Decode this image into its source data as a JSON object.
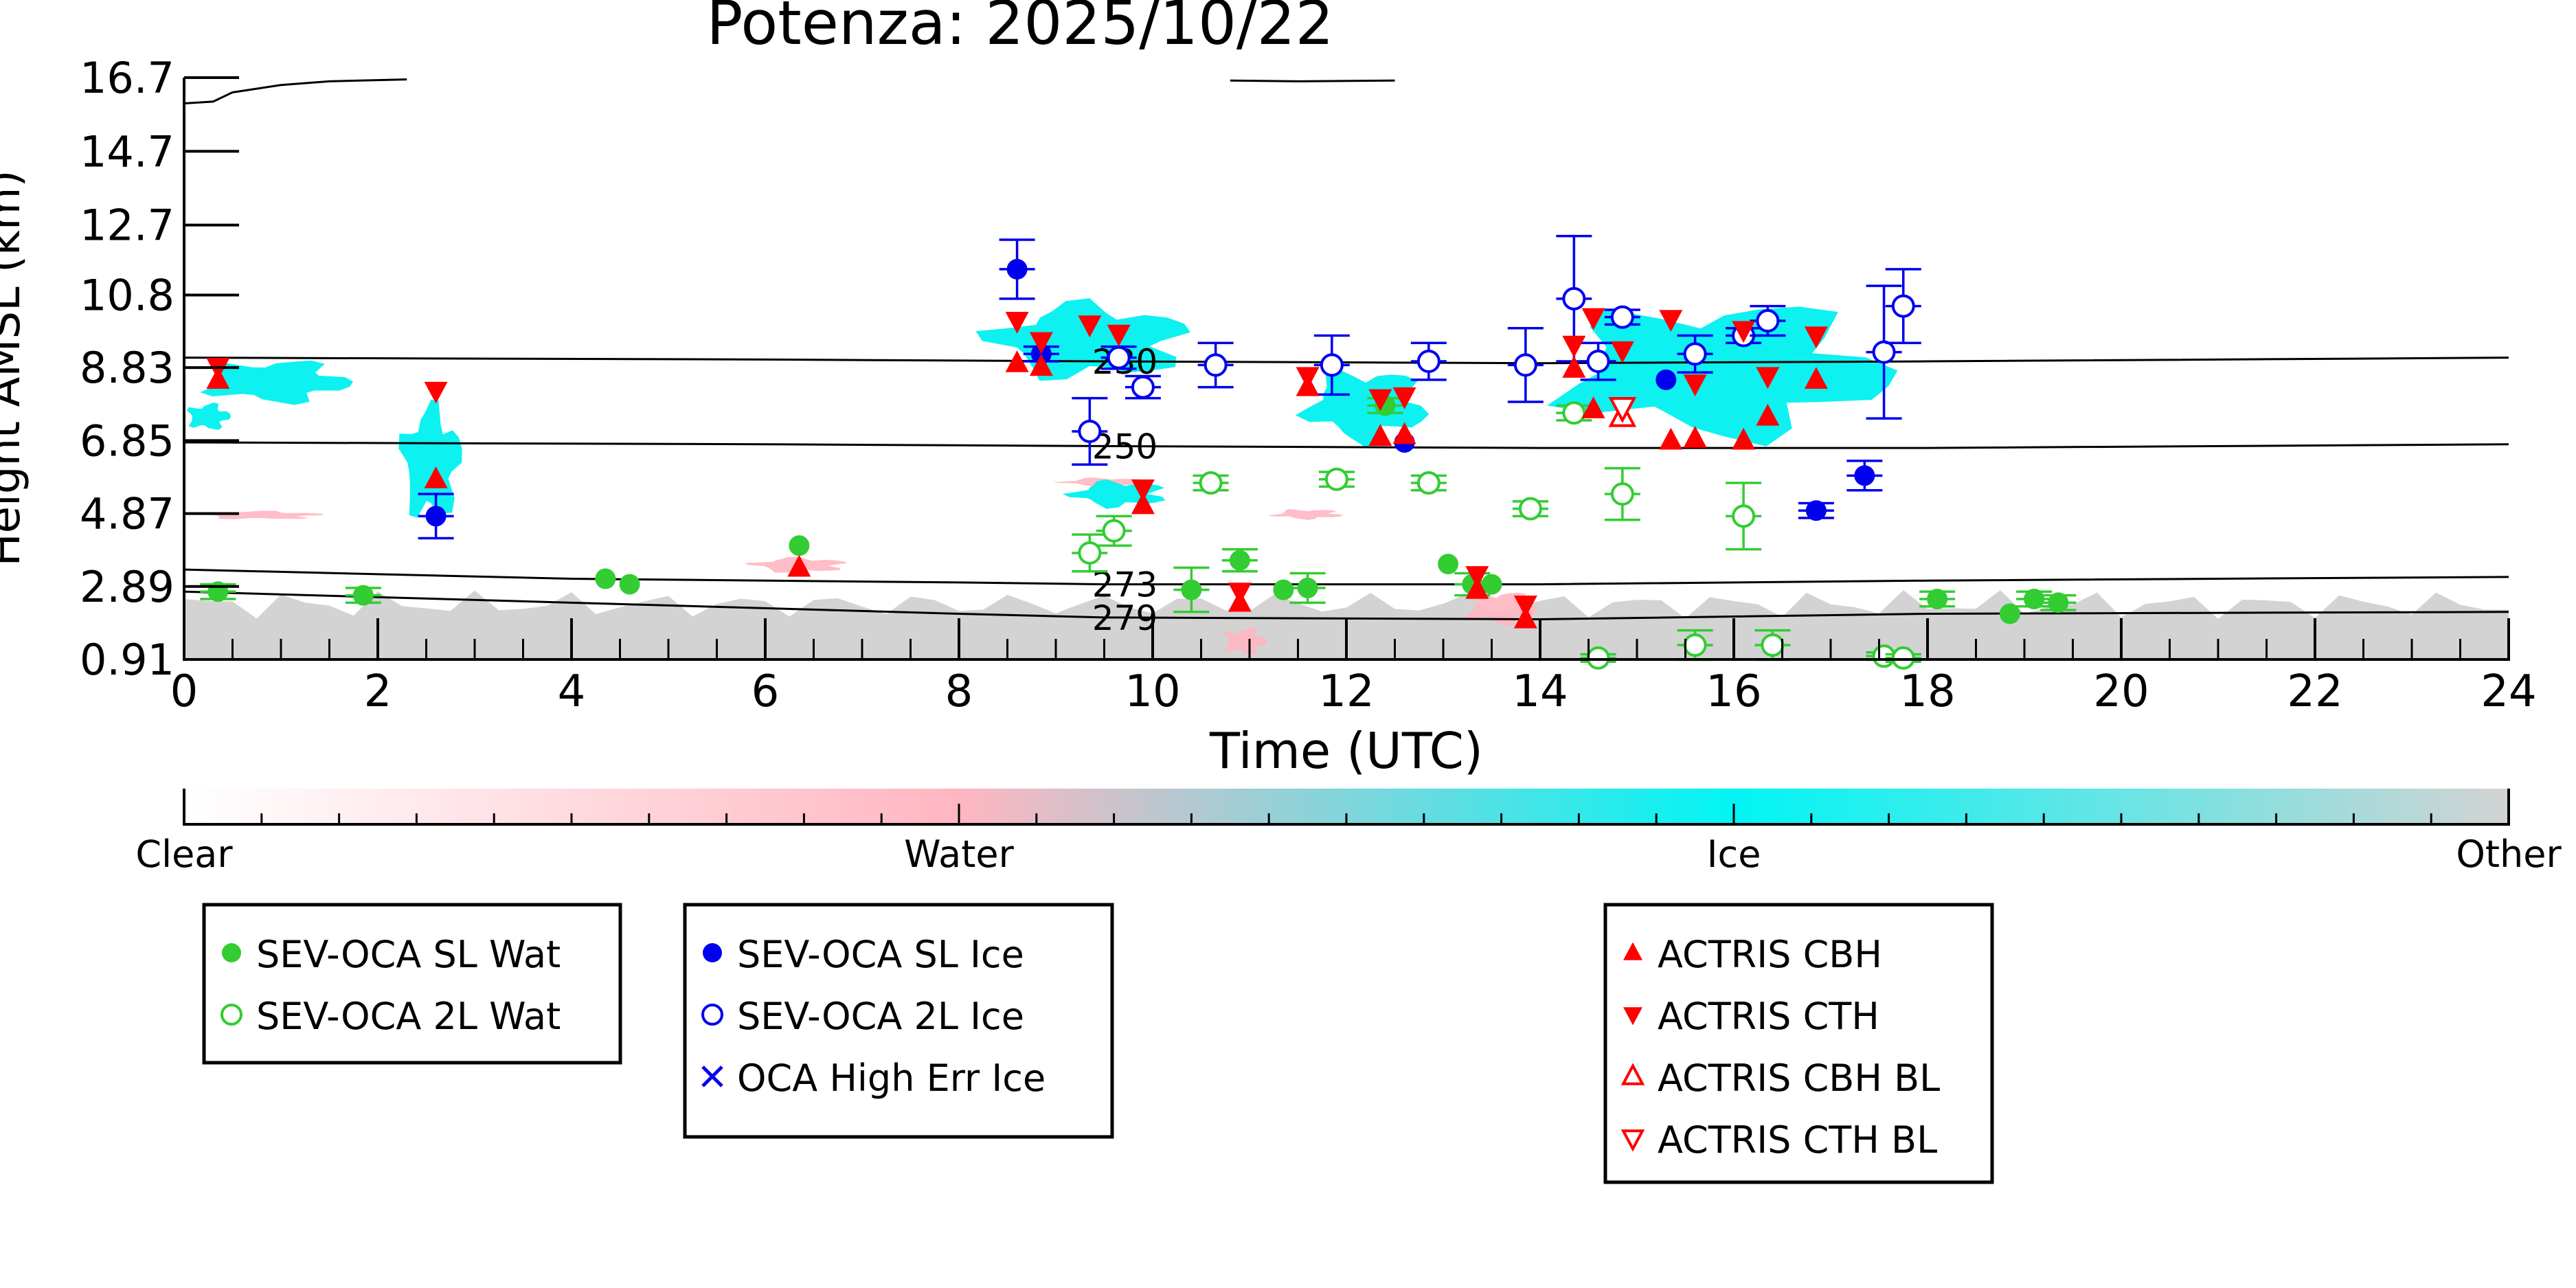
{
  "chart_data": {
    "type": "scatter",
    "title": "Potenza: 2025/10/22",
    "xlabel": "Time (UTC)",
    "ylabel": "Height AMSL (km)",
    "xlim": [
      0,
      24
    ],
    "ylim": [
      0.91,
      16.7
    ],
    "x_ticks": [
      "0",
      "2",
      "4",
      "6",
      "8",
      "10",
      "12",
      "14",
      "16",
      "18",
      "20",
      "22",
      "24"
    ],
    "y_ticks": [
      "0.91",
      "2.89",
      "4.87",
      "6.85",
      "8.83",
      "10.8",
      "12.7",
      "14.7",
      "16.7"
    ],
    "colorbar": {
      "labels": [
        "Clear",
        "Water",
        "Ice",
        "Other"
      ],
      "colors": [
        "#ffffff",
        "#ffb6c1",
        "#00f5f5",
        "#d3d3d3"
      ]
    },
    "isotherms": [
      {
        "label": "230",
        "points": [
          [
            0,
            9.1
          ],
          [
            6,
            9.05
          ],
          [
            9.5,
            9.0
          ],
          [
            14,
            8.95
          ],
          [
            18,
            9.0
          ],
          [
            24,
            9.1
          ]
        ]
      },
      {
        "label": "250",
        "points": [
          [
            0,
            6.8
          ],
          [
            6,
            6.75
          ],
          [
            9.5,
            6.7
          ],
          [
            14,
            6.65
          ],
          [
            18,
            6.65
          ],
          [
            24,
            6.75
          ]
        ]
      },
      {
        "label": "273",
        "points": [
          [
            0,
            3.35
          ],
          [
            4,
            3.1
          ],
          [
            8,
            3.0
          ],
          [
            9.5,
            2.95
          ],
          [
            14,
            2.95
          ],
          [
            18,
            3.05
          ],
          [
            24,
            3.15
          ]
        ]
      },
      {
        "label": "279",
        "points": [
          [
            0,
            2.75
          ],
          [
            4,
            2.45
          ],
          [
            8,
            2.15
          ],
          [
            9.5,
            2.05
          ],
          [
            14,
            2.0
          ],
          [
            18,
            2.15
          ],
          [
            24,
            2.2
          ]
        ]
      }
    ],
    "cloud_ice_regions": [
      {
        "x0": 0.1,
        "x1": 1.8,
        "y0": 7.8,
        "y1": 9.1
      },
      {
        "x0": 0.0,
        "x1": 0.5,
        "y0": 7.1,
        "y1": 7.9
      },
      {
        "x0": 2.2,
        "x1": 2.9,
        "y0": 4.5,
        "y1": 8.0
      },
      {
        "x0": 8.2,
        "x1": 10.5,
        "y0": 8.4,
        "y1": 10.7
      },
      {
        "x0": 9.1,
        "x1": 10.2,
        "y0": 5.0,
        "y1": 5.8
      },
      {
        "x0": 11.5,
        "x1": 12.9,
        "y0": 6.7,
        "y1": 8.9
      },
      {
        "x0": 14.0,
        "x1": 17.8,
        "y0": 6.7,
        "y1": 10.8
      }
    ],
    "cloud_water_regions": [
      {
        "x0": 0.1,
        "x1": 1.5,
        "y0": 4.7,
        "y1": 4.95
      },
      {
        "x0": 5.8,
        "x1": 6.9,
        "y0": 3.25,
        "y1": 3.7
      },
      {
        "x0": 9.0,
        "x1": 10.0,
        "y0": 5.6,
        "y1": 5.85
      },
      {
        "x0": 11.2,
        "x1": 12.0,
        "y0": 4.7,
        "y1": 5.0
      },
      {
        "x0": 13.2,
        "x1": 14.0,
        "y0": 1.8,
        "y1": 2.8
      },
      {
        "x0": 10.7,
        "x1": 11.2,
        "y0": 1.0,
        "y1": 1.8
      }
    ],
    "ground_other": {
      "y0": 0.91,
      "y1": 2.4
    },
    "upper_lines": [
      {
        "points": [
          [
            0.0,
            16.0
          ],
          [
            0.3,
            16.05
          ],
          [
            0.5,
            16.3
          ],
          [
            1.0,
            16.5
          ],
          [
            1.5,
            16.6
          ],
          [
            2.3,
            16.65
          ]
        ]
      },
      {
        "points": [
          [
            10.8,
            16.62
          ],
          [
            11.5,
            16.6
          ],
          [
            12.5,
            16.62
          ]
        ]
      }
    ],
    "legend": [
      {
        "name": "SEV-OCA SL Wat",
        "marker": "filled-circle",
        "color": "#33cc33"
      },
      {
        "name": "SEV-OCA 2L Wat",
        "marker": "open-circle",
        "color": "#33cc33"
      },
      {
        "name": "SEV-OCA SL Ice",
        "marker": "filled-circle",
        "color": "#0000ee"
      },
      {
        "name": "SEV-OCA 2L Ice",
        "marker": "open-circle",
        "color": "#0000ee"
      },
      {
        "name": "OCA High Err Ice",
        "marker": "x",
        "color": "#0000ee"
      },
      {
        "name": "ACTRIS CBH",
        "marker": "triangle-up",
        "color": "#ff0000"
      },
      {
        "name": "ACTRIS CTH",
        "marker": "triangle-down",
        "color": "#ff0000"
      },
      {
        "name": "ACTRIS CBH BL",
        "marker": "open-triangle-up",
        "color": "#ff0000"
      },
      {
        "name": "ACTRIS CTH BL",
        "marker": "open-triangle-down",
        "color": "#ff0000"
      }
    ],
    "series": [
      {
        "key": "sl_wat",
        "points": [
          [
            0.35,
            2.75,
            0.2
          ],
          [
            1.85,
            2.65,
            0.2
          ],
          [
            4.35,
            3.1,
            0
          ],
          [
            4.6,
            2.95,
            0
          ],
          [
            6.35,
            4.0,
            0
          ],
          [
            10.4,
            2.8,
            0.6
          ],
          [
            10.9,
            3.6,
            0.3
          ],
          [
            11.35,
            2.8,
            0
          ],
          [
            11.6,
            2.85,
            0.4
          ],
          [
            12.4,
            7.8,
            0.2
          ],
          [
            13.05,
            3.5,
            0
          ],
          [
            13.3,
            2.95,
            0.3
          ],
          [
            13.5,
            2.95,
            0
          ],
          [
            18.1,
            2.55,
            0.2
          ],
          [
            18.85,
            2.15,
            0
          ],
          [
            19.1,
            2.55,
            0.2
          ],
          [
            19.35,
            2.45,
            0.2
          ]
        ]
      },
      {
        "key": "2l_wat",
        "points": [
          [
            9.35,
            3.8,
            0.5
          ],
          [
            9.6,
            4.4,
            0.4
          ],
          [
            10.6,
            5.7,
            0.2
          ],
          [
            11.9,
            5.8,
            0.2
          ],
          [
            12.85,
            5.7,
            0.2
          ],
          [
            13.9,
            5.0,
            0.2
          ],
          [
            14.35,
            7.6,
            0.2
          ],
          [
            14.85,
            5.4,
            0.7
          ],
          [
            15.6,
            1.3,
            0.4
          ],
          [
            16.1,
            4.8,
            0.9
          ],
          [
            16.4,
            1.3,
            0.4
          ],
          [
            17.55,
            1.0,
            0.1
          ],
          [
            17.75,
            0.95,
            0.1
          ],
          [
            14.6,
            0.95,
            0.1
          ]
        ]
      },
      {
        "key": "sl_ice",
        "points": [
          [
            2.6,
            4.8,
            0.6
          ],
          [
            8.6,
            11.5,
            0.8
          ],
          [
            8.85,
            9.2,
            0.2
          ],
          [
            12.6,
            6.8,
            0
          ],
          [
            15.3,
            8.5,
            0
          ],
          [
            16.85,
            4.95,
            0.2
          ],
          [
            17.35,
            5.9,
            0.4
          ]
        ]
      },
      {
        "key": "2l_ice",
        "points": [
          [
            9.35,
            7.1,
            0.9
          ],
          [
            9.65,
            9.1,
            0.3
          ],
          [
            9.9,
            8.3,
            0.3
          ],
          [
            10.65,
            8.9,
            0.6
          ],
          [
            11.85,
            8.9,
            0.8
          ],
          [
            12.85,
            9.0,
            0.5
          ],
          [
            13.85,
            8.9,
            1.0
          ],
          [
            14.35,
            10.7,
            1.7
          ],
          [
            14.6,
            9.0,
            0.5
          ],
          [
            14.85,
            10.2,
            0.2
          ],
          [
            15.6,
            9.2,
            0.5
          ],
          [
            16.1,
            9.7,
            0.2
          ],
          [
            16.35,
            10.1,
            0.4
          ],
          [
            17.55,
            9.25,
            1.8
          ],
          [
            17.75,
            10.5,
            1.0
          ]
        ]
      },
      {
        "key": "cbh",
        "points": [
          [
            0.35,
            8.5
          ],
          [
            2.6,
            5.8
          ],
          [
            6.35,
            3.4
          ],
          [
            8.6,
            8.95
          ],
          [
            8.85,
            8.85
          ],
          [
            9.9,
            5.1
          ],
          [
            10.9,
            2.45
          ],
          [
            11.6,
            8.3
          ],
          [
            12.35,
            6.95
          ],
          [
            12.6,
            7.0
          ],
          [
            13.35,
            2.8
          ],
          [
            13.85,
            2.0
          ],
          [
            14.35,
            8.8
          ],
          [
            14.55,
            7.7
          ],
          [
            15.35,
            6.85
          ],
          [
            15.6,
            6.9
          ],
          [
            16.1,
            6.85
          ],
          [
            16.35,
            7.5
          ],
          [
            16.85,
            8.5
          ]
        ]
      },
      {
        "key": "cth",
        "points": [
          [
            0.35,
            8.85
          ],
          [
            2.6,
            8.2
          ],
          [
            8.6,
            10.1
          ],
          [
            8.85,
            9.55
          ],
          [
            9.35,
            10.0
          ],
          [
            9.65,
            9.75
          ],
          [
            9.9,
            5.55
          ],
          [
            10.9,
            2.75
          ],
          [
            11.6,
            8.6
          ],
          [
            12.35,
            8.0
          ],
          [
            12.6,
            8.05
          ],
          [
            13.35,
            3.2
          ],
          [
            13.85,
            2.4
          ],
          [
            14.35,
            9.45
          ],
          [
            14.55,
            10.2
          ],
          [
            14.85,
            9.3
          ],
          [
            15.35,
            10.15
          ],
          [
            15.6,
            8.4
          ],
          [
            16.1,
            9.85
          ],
          [
            16.35,
            8.6
          ],
          [
            16.85,
            9.7
          ]
        ]
      },
      {
        "key": "cbh_bl",
        "points": [
          [
            14.85,
            7.5
          ]
        ]
      },
      {
        "key": "cth_bl",
        "points": [
          [
            14.85,
            7.75
          ]
        ]
      }
    ]
  }
}
